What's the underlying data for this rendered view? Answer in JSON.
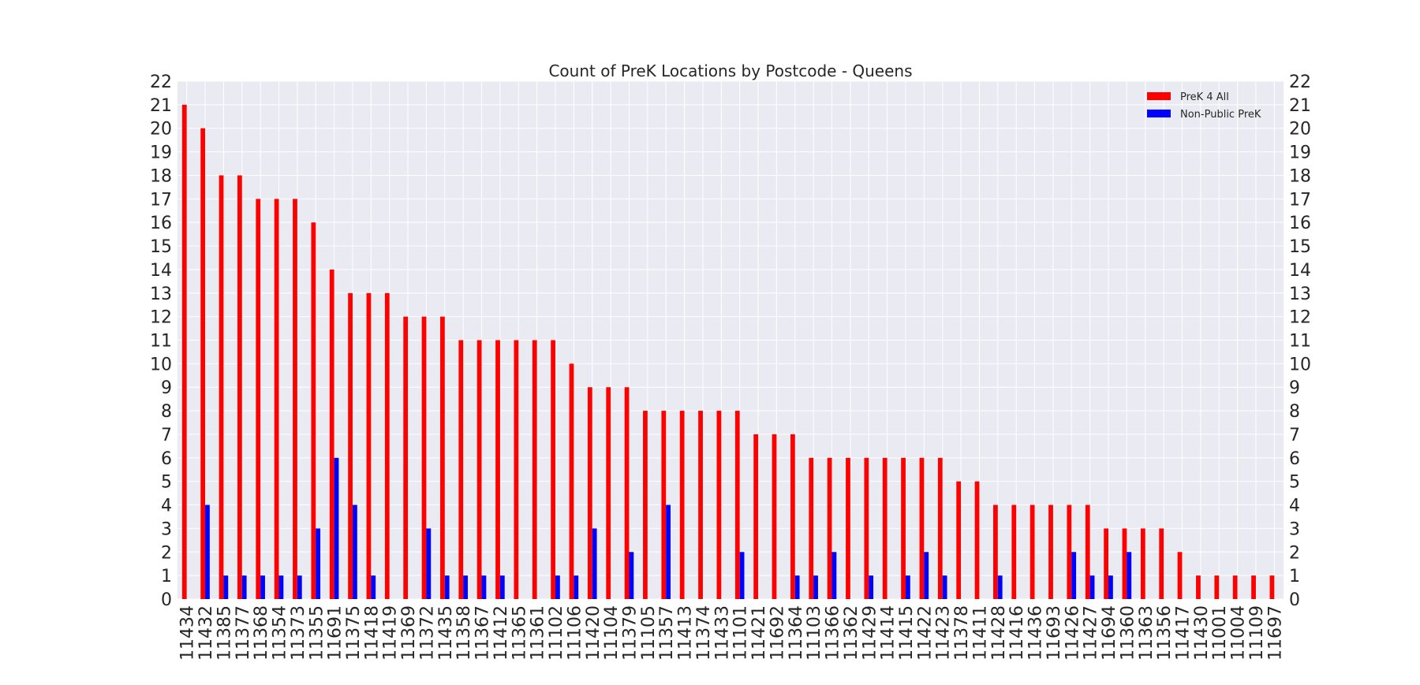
{
  "chart_data": {
    "type": "bar",
    "title": "Count of PreK Locations by Postcode - Queens",
    "xlabel": "",
    "ylabel": "",
    "ylim": [
      0,
      22
    ],
    "yticks": [
      0,
      1,
      2,
      3,
      4,
      5,
      6,
      7,
      8,
      9,
      10,
      11,
      12,
      13,
      14,
      15,
      16,
      17,
      18,
      19,
      20,
      21,
      22
    ],
    "grid": true,
    "legend_position": "top-right",
    "categories": [
      "11434",
      "11432",
      "11385",
      "11377",
      "11368",
      "11354",
      "11373",
      "11355",
      "11691",
      "11375",
      "11418",
      "11419",
      "11369",
      "11372",
      "11435",
      "11358",
      "11367",
      "11412",
      "11365",
      "11361",
      "11102",
      "11106",
      "11420",
      "11104",
      "11379",
      "11105",
      "11357",
      "11413",
      "11374",
      "11433",
      "11101",
      "11421",
      "11692",
      "11364",
      "11103",
      "11366",
      "11362",
      "11429",
      "11414",
      "11415",
      "11422",
      "11423",
      "11378",
      "11411",
      "11428",
      "11416",
      "11436",
      "11693",
      "11426",
      "11427",
      "11694",
      "11360",
      "11363",
      "11356",
      "11417",
      "11430",
      "11001",
      "11004",
      "11109",
      "11697"
    ],
    "series": [
      {
        "name": "PreK 4 All",
        "color": "#ff0000",
        "values": [
          21,
          20,
          18,
          18,
          17,
          17,
          17,
          16,
          14,
          13,
          13,
          13,
          12,
          12,
          12,
          11,
          11,
          11,
          11,
          11,
          11,
          10,
          9,
          9,
          9,
          8,
          8,
          8,
          8,
          8,
          8,
          7,
          7,
          7,
          6,
          6,
          6,
          6,
          6,
          6,
          6,
          6,
          5,
          5,
          4,
          4,
          4,
          4,
          4,
          4,
          3,
          3,
          3,
          3,
          2,
          1,
          1,
          1,
          1,
          1
        ]
      },
      {
        "name": "Non-Public PreK",
        "color": "#0000ff",
        "values": [
          0,
          4,
          1,
          1,
          1,
          1,
          1,
          3,
          6,
          4,
          1,
          0,
          0,
          3,
          1,
          1,
          1,
          1,
          0,
          0,
          1,
          1,
          3,
          0,
          2,
          0,
          4,
          0,
          0,
          0,
          2,
          0,
          0,
          1,
          1,
          2,
          0,
          1,
          0,
          1,
          2,
          1,
          0,
          0,
          1,
          0,
          0,
          0,
          2,
          1,
          1,
          2,
          0,
          0,
          0,
          0,
          0,
          0,
          0,
          0
        ]
      }
    ]
  },
  "colors": {
    "plot_background": "#eaeaf2",
    "grid": "#ffffff"
  }
}
